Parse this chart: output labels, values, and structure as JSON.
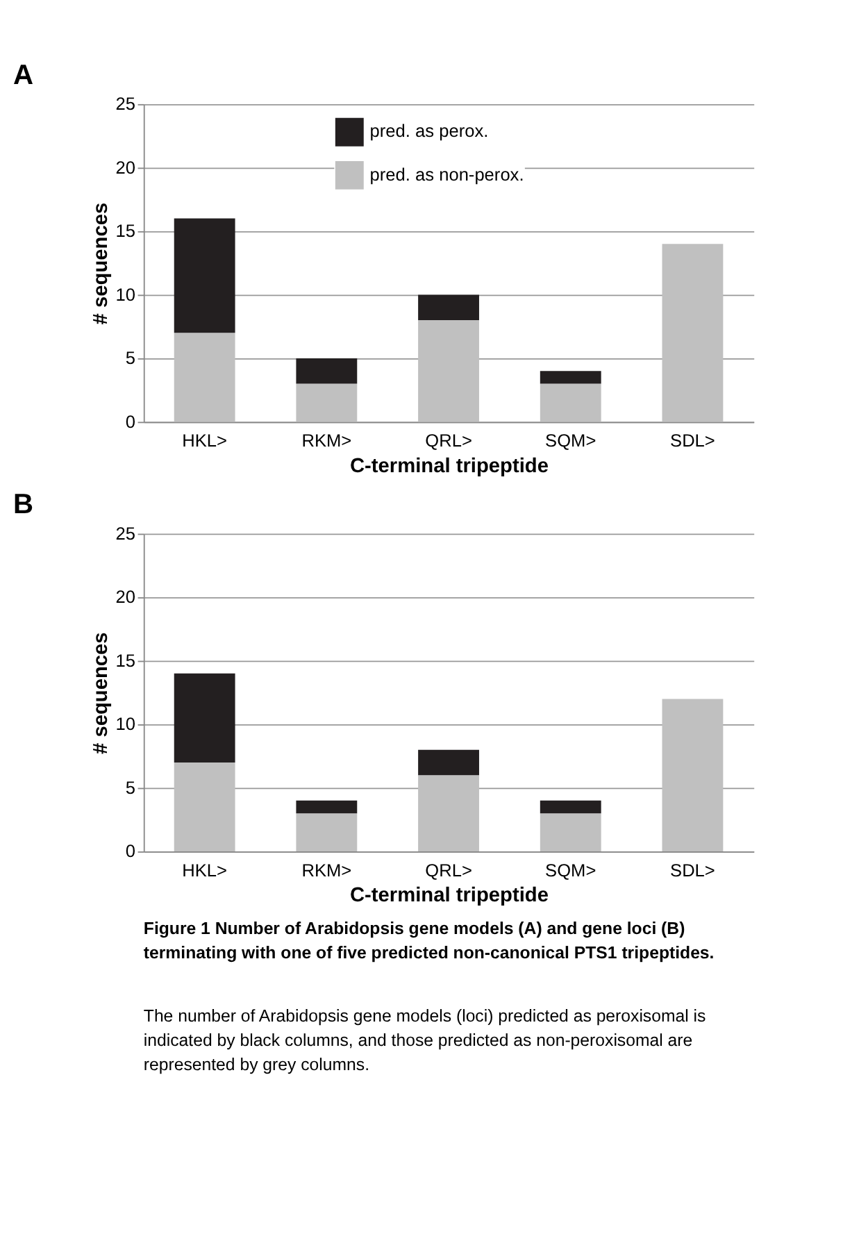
{
  "chart_data": [
    {
      "type": "bar",
      "title": "A",
      "stacked": true,
      "categories": [
        "HKL>",
        "RKM>",
        "QRL>",
        "SQM>",
        "SDL>"
      ],
      "xlabel": "C-terminal tripeptide",
      "ylabel": "# sequences",
      "ylim": [
        0,
        25
      ],
      "yticks": [
        0,
        5,
        10,
        15,
        20,
        25
      ],
      "grid": "y",
      "legend": "top",
      "series": [
        {
          "name": "pred. as non-perox.",
          "color": "#c0c0c0",
          "values": [
            7,
            3,
            8,
            3,
            14
          ]
        },
        {
          "name": "pred. as perox.",
          "color": "#231f20",
          "values": [
            9,
            2,
            2,
            1,
            0
          ]
        }
      ]
    },
    {
      "type": "bar",
      "title": "B",
      "stacked": true,
      "categories": [
        "HKL>",
        "RKM>",
        "QRL>",
        "SQM>",
        "SDL>"
      ],
      "xlabel": "C-terminal tripeptide",
      "ylabel": "# sequences",
      "ylim": [
        0,
        25
      ],
      "yticks": [
        0,
        5,
        10,
        15,
        20,
        25
      ],
      "grid": "y",
      "series": [
        {
          "color": "#c0c0c0",
          "values": [
            7,
            3,
            6,
            3,
            12
          ]
        },
        {
          "color": "#231f20",
          "values": [
            7,
            1,
            2,
            1,
            0
          ]
        }
      ],
      "annotations": [
        "Figure 1 Number of Arabidopsis gene models (A) and gene loci (B) terminating with one of five predicted non-canonical PTS1 tripeptides.",
        "The number of Arabidopsis gene models (loci) predicted as peroxisomal is indicated by black columns, and those predicted as non-peroxisomal are represented by grey columns."
      ]
    }
  ]
}
